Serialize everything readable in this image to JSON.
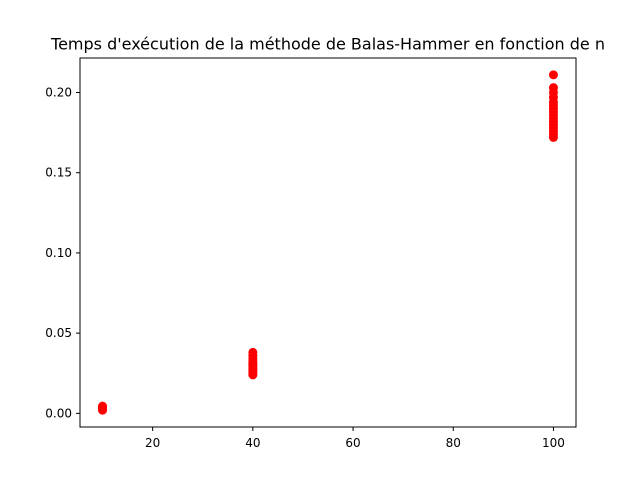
{
  "chart_data": {
    "type": "scatter",
    "title": "Temps d'exécution de la méthode de Balas-Hammer en fonction de n",
    "xlabel": "",
    "ylabel": "",
    "xlim": [
      5.5,
      104.5
    ],
    "ylim": [
      -0.0085,
      0.2215
    ],
    "xticks": [
      20,
      40,
      60,
      80,
      100
    ],
    "xtick_labels": [
      "20",
      "40",
      "60",
      "80",
      "100"
    ],
    "yticks": [
      0.0,
      0.05,
      0.1,
      0.15,
      0.2
    ],
    "ytick_labels": [
      "0.00",
      "0.05",
      "0.10",
      "0.15",
      "0.20"
    ],
    "grid": false,
    "marker_color": "#ff0000",
    "series": [
      {
        "points": [
          {
            "x": 10,
            "y": 0.002
          },
          {
            "x": 10,
            "y": 0.0025
          },
          {
            "x": 10,
            "y": 0.003
          },
          {
            "x": 10,
            "y": 0.0035
          },
          {
            "x": 10,
            "y": 0.004
          },
          {
            "x": 10,
            "y": 0.0045
          },
          {
            "x": 40,
            "y": 0.024
          },
          {
            "x": 40,
            "y": 0.025
          },
          {
            "x": 40,
            "y": 0.026
          },
          {
            "x": 40,
            "y": 0.027
          },
          {
            "x": 40,
            "y": 0.028
          },
          {
            "x": 40,
            "y": 0.029
          },
          {
            "x": 40,
            "y": 0.03
          },
          {
            "x": 40,
            "y": 0.031
          },
          {
            "x": 40,
            "y": 0.032
          },
          {
            "x": 40,
            "y": 0.034
          },
          {
            "x": 40,
            "y": 0.036
          },
          {
            "x": 40,
            "y": 0.038
          },
          {
            "x": 100,
            "y": 0.172
          },
          {
            "x": 100,
            "y": 0.174
          },
          {
            "x": 100,
            "y": 0.176
          },
          {
            "x": 100,
            "y": 0.178
          },
          {
            "x": 100,
            "y": 0.18
          },
          {
            "x": 100,
            "y": 0.182
          },
          {
            "x": 100,
            "y": 0.184
          },
          {
            "x": 100,
            "y": 0.186
          },
          {
            "x": 100,
            "y": 0.188
          },
          {
            "x": 100,
            "y": 0.19
          },
          {
            "x": 100,
            "y": 0.192
          },
          {
            "x": 100,
            "y": 0.194
          },
          {
            "x": 100,
            "y": 0.197
          },
          {
            "x": 100,
            "y": 0.2
          },
          {
            "x": 100,
            "y": 0.203
          },
          {
            "x": 100,
            "y": 0.211
          }
        ]
      }
    ]
  }
}
